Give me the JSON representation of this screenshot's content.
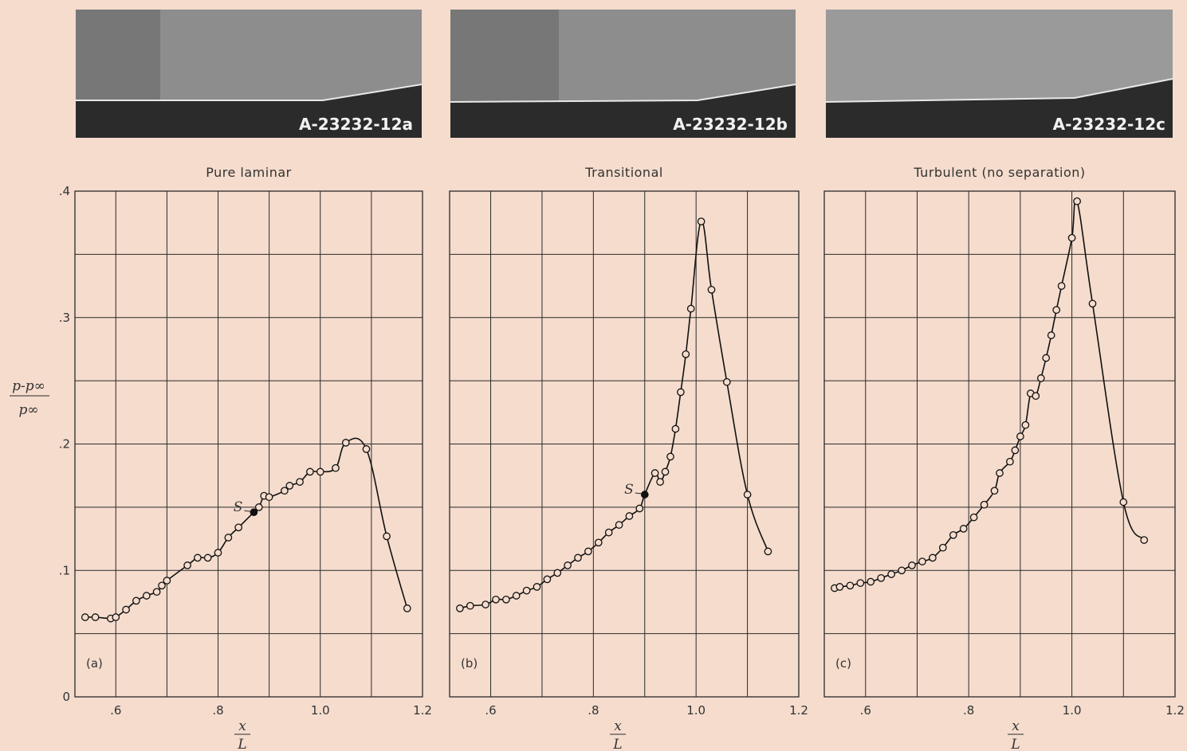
{
  "photos": [
    {
      "label": "A-23232-12a"
    },
    {
      "label": "A-23232-12b"
    },
    {
      "label": "A-23232-12c"
    }
  ],
  "axes": {
    "y_label_numerator": "p-p∞",
    "y_label_denominator": "p∞",
    "x_label_numerator": "x",
    "x_label_denominator": "L"
  },
  "chart_data": [
    {
      "type": "line",
      "title": "Pure laminar",
      "panel_label": "(a)",
      "xlim": [
        0.52,
        1.2
      ],
      "ylim": [
        0,
        0.4
      ],
      "x_ticks": [
        ".6",
        ".8",
        "1.0",
        "1.2"
      ],
      "y_ticks": [
        "0",
        ".1",
        ".2",
        ".3",
        ".4"
      ],
      "grid": true,
      "series": [
        {
          "x": [
            0.54,
            0.56,
            0.59,
            0.6,
            0.62,
            0.64,
            0.66,
            0.68,
            0.69,
            0.7,
            0.74,
            0.76,
            0.78,
            0.8,
            0.82,
            0.84,
            0.87,
            0.88,
            0.89,
            0.9,
            0.93,
            0.94,
            0.96,
            0.98,
            1.0,
            1.03,
            1.05,
            1.09,
            1.13,
            1.17
          ],
          "y": [
            0.063,
            0.063,
            0.062,
            0.063,
            0.069,
            0.076,
            0.08,
            0.083,
            0.088,
            0.092,
            0.104,
            0.11,
            0.11,
            0.114,
            0.126,
            0.134,
            0.146,
            0.15,
            0.159,
            0.158,
            0.163,
            0.167,
            0.17,
            0.178,
            0.178,
            0.181,
            0.201,
            0.196,
            0.127,
            0.07
          ]
        }
      ],
      "annotation": {
        "text": "S",
        "x": 0.87,
        "y": 0.146
      }
    },
    {
      "type": "line",
      "title": "Transitional",
      "panel_label": "(b)",
      "xlim": [
        0.52,
        1.2
      ],
      "ylim": [
        0,
        0.4
      ],
      "x_ticks": [
        ".6",
        ".8",
        "1.0",
        "1.2"
      ],
      "y_ticks": [
        "0",
        ".1",
        ".2",
        ".3",
        ".4"
      ],
      "grid": true,
      "series": [
        {
          "x": [
            0.54,
            0.56,
            0.59,
            0.61,
            0.63,
            0.65,
            0.67,
            0.69,
            0.71,
            0.73,
            0.75,
            0.77,
            0.79,
            0.81,
            0.83,
            0.85,
            0.87,
            0.89,
            0.9,
            0.92,
            0.93,
            0.94,
            0.95,
            0.96,
            0.97,
            0.98,
            0.99,
            1.01,
            1.03,
            1.06,
            1.1,
            1.14
          ],
          "y": [
            0.07,
            0.072,
            0.073,
            0.077,
            0.077,
            0.08,
            0.084,
            0.087,
            0.093,
            0.098,
            0.104,
            0.11,
            0.115,
            0.122,
            0.13,
            0.136,
            0.143,
            0.149,
            0.16,
            0.177,
            0.17,
            0.178,
            0.19,
            0.212,
            0.241,
            0.271,
            0.307,
            0.376,
            0.322,
            0.249,
            0.16,
            0.115
          ]
        }
      ],
      "annotation": {
        "text": "S",
        "x": 0.9,
        "y": 0.16
      }
    },
    {
      "type": "line",
      "title": "Turbulent (no separation)",
      "panel_label": "(c)",
      "xlim": [
        0.52,
        1.2
      ],
      "ylim": [
        0,
        0.4
      ],
      "x_ticks": [
        ".6",
        ".8",
        "1.0",
        "1.2"
      ],
      "y_ticks": [
        "0",
        ".1",
        ".2",
        ".3",
        ".4"
      ],
      "grid": true,
      "series": [
        {
          "x": [
            0.54,
            0.55,
            0.57,
            0.59,
            0.61,
            0.63,
            0.65,
            0.67,
            0.69,
            0.71,
            0.73,
            0.75,
            0.77,
            0.79,
            0.81,
            0.83,
            0.85,
            0.86,
            0.88,
            0.89,
            0.9,
            0.91,
            0.92,
            0.93,
            0.94,
            0.95,
            0.96,
            0.97,
            0.98,
            1.0,
            1.01,
            1.04,
            1.1,
            1.14
          ],
          "y": [
            0.086,
            0.087,
            0.088,
            0.09,
            0.091,
            0.094,
            0.097,
            0.1,
            0.104,
            0.107,
            0.11,
            0.118,
            0.128,
            0.133,
            0.142,
            0.152,
            0.163,
            0.177,
            0.186,
            0.195,
            0.206,
            0.215,
            0.24,
            0.238,
            0.252,
            0.268,
            0.286,
            0.306,
            0.325,
            0.363,
            0.392,
            0.311,
            0.154,
            0.124
          ]
        }
      ]
    }
  ]
}
